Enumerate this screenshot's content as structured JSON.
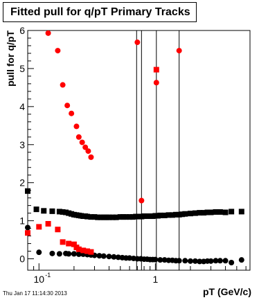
{
  "chart_data": {
    "type": "scatter",
    "title": "Fitted pull for q/pT  Primary Tracks",
    "xlabel": "pT (GeV/c)",
    "ylabel": "pull for q/pT",
    "x_scale": "log",
    "xlim": [
      0.08,
      6.5
    ],
    "ylim": [
      -0.3,
      6.0
    ],
    "x_tick_labels": [
      {
        "value": 0.1,
        "label": "10",
        "sup": "-1"
      },
      {
        "value": 1,
        "label": "1",
        "sup": ""
      }
    ],
    "y_tick_labels": [
      0,
      1,
      2,
      3,
      4,
      5,
      6
    ],
    "series": [
      {
        "marker": "square",
        "color": "#000000",
        "points": [
          [
            0.08,
            1.78
          ],
          [
            0.095,
            1.3
          ],
          [
            0.11,
            1.26
          ],
          [
            0.13,
            1.25
          ],
          [
            0.15,
            1.24
          ],
          [
            0.16,
            1.23
          ],
          [
            0.17,
            1.22
          ],
          [
            0.18,
            1.2
          ],
          [
            0.19,
            1.18
          ],
          [
            0.2,
            1.16
          ],
          [
            0.21,
            1.15
          ],
          [
            0.22,
            1.14
          ],
          [
            0.23,
            1.13
          ],
          [
            0.24,
            1.12
          ],
          [
            0.25,
            1.12
          ],
          [
            0.26,
            1.11
          ],
          [
            0.28,
            1.1
          ],
          [
            0.3,
            1.1
          ],
          [
            0.32,
            1.09
          ],
          [
            0.34,
            1.09
          ],
          [
            0.36,
            1.09
          ],
          [
            0.38,
            1.09
          ],
          [
            0.4,
            1.09
          ],
          [
            0.43,
            1.09
          ],
          [
            0.46,
            1.09
          ],
          [
            0.5,
            1.1
          ],
          [
            0.53,
            1.1
          ],
          [
            0.56,
            1.1
          ],
          [
            0.6,
            1.1
          ],
          [
            0.64,
            1.1
          ],
          [
            0.68,
            1.11
          ],
          [
            0.72,
            1.11
          ],
          [
            0.76,
            1.11
          ],
          [
            0.8,
            1.12
          ],
          [
            0.85,
            1.12
          ],
          [
            0.9,
            1.12
          ],
          [
            0.95,
            1.12
          ],
          [
            1.0,
            1.13
          ],
          [
            1.05,
            1.13
          ],
          [
            1.1,
            1.14
          ],
          [
            1.2,
            1.14
          ],
          [
            1.3,
            1.15
          ],
          [
            1.4,
            1.15
          ],
          [
            1.5,
            1.16
          ],
          [
            1.6,
            1.16
          ],
          [
            1.7,
            1.17
          ],
          [
            1.8,
            1.18
          ],
          [
            2.0,
            1.19
          ],
          [
            2.2,
            1.2
          ],
          [
            2.4,
            1.21
          ],
          [
            2.6,
            1.21
          ],
          [
            2.8,
            1.22
          ],
          [
            3.0,
            1.22
          ],
          [
            3.3,
            1.23
          ],
          [
            3.6,
            1.23
          ],
          [
            4.0,
            1.22
          ],
          [
            4.5,
            1.24
          ],
          [
            5.5,
            1.24
          ]
        ]
      },
      {
        "marker": "circle",
        "color": "#000000",
        "points": [
          [
            0.08,
            0.82
          ],
          [
            0.1,
            0.17
          ],
          [
            0.13,
            0.14
          ],
          [
            0.15,
            0.13
          ],
          [
            0.17,
            0.14
          ],
          [
            0.18,
            0.13
          ],
          [
            0.2,
            0.13
          ],
          [
            0.22,
            0.12
          ],
          [
            0.24,
            0.12
          ],
          [
            0.26,
            0.11
          ],
          [
            0.28,
            0.1
          ],
          [
            0.3,
            0.09
          ],
          [
            0.33,
            0.08
          ],
          [
            0.36,
            0.07
          ],
          [
            0.4,
            0.06
          ],
          [
            0.44,
            0.05
          ],
          [
            0.48,
            0.04
          ],
          [
            0.52,
            0.03
          ],
          [
            0.56,
            0.02
          ],
          [
            0.6,
            0.02
          ],
          [
            0.65,
            0.01
          ],
          [
            0.7,
            0.0
          ],
          [
            0.75,
            0.0
          ],
          [
            0.8,
            -0.01
          ],
          [
            0.85,
            -0.01
          ],
          [
            0.9,
            -0.02
          ],
          [
            0.95,
            -0.02
          ],
          [
            1.0,
            -0.02
          ],
          [
            1.1,
            -0.03
          ],
          [
            1.2,
            -0.03
          ],
          [
            1.3,
            -0.04
          ],
          [
            1.4,
            -0.04
          ],
          [
            1.5,
            -0.05
          ],
          [
            1.6,
            -0.05
          ],
          [
            1.8,
            -0.05
          ],
          [
            2.0,
            -0.06
          ],
          [
            2.2,
            -0.06
          ],
          [
            2.4,
            -0.07
          ],
          [
            2.6,
            -0.07
          ],
          [
            2.8,
            -0.06
          ],
          [
            3.0,
            -0.06
          ],
          [
            3.3,
            -0.05
          ],
          [
            3.6,
            -0.05
          ],
          [
            4.0,
            -0.05
          ],
          [
            4.5,
            -0.1
          ],
          [
            5.5,
            -0.03
          ]
        ]
      },
      {
        "marker": "square",
        "color": "#ff0000",
        "points": [
          [
            0.08,
            0.68
          ],
          [
            0.1,
            0.84
          ],
          [
            0.12,
            0.92
          ],
          [
            0.145,
            0.77
          ],
          [
            0.16,
            0.44
          ],
          [
            0.18,
            0.4
          ],
          [
            0.2,
            0.38
          ],
          [
            0.21,
            0.3
          ],
          [
            0.22,
            0.25
          ],
          [
            0.24,
            0.22
          ],
          [
            0.26,
            0.2
          ],
          [
            0.28,
            0.18
          ],
          [
            1.02,
            4.97
          ]
        ]
      },
      {
        "marker": "circle",
        "color": "#ff0000",
        "points": [
          [
            0.12,
            5.93
          ],
          [
            0.145,
            5.47
          ],
          [
            0.16,
            4.57
          ],
          [
            0.175,
            4.03
          ],
          [
            0.19,
            3.82
          ],
          [
            0.21,
            3.48
          ],
          [
            0.22,
            3.2
          ],
          [
            0.235,
            3.06
          ],
          [
            0.25,
            2.93
          ],
          [
            0.265,
            2.83
          ],
          [
            0.28,
            2.67
          ],
          [
            0.7,
            5.69
          ],
          [
            0.76,
            1.53
          ],
          [
            1.02,
            4.63
          ],
          [
            1.6,
            5.47
          ]
        ]
      }
    ],
    "vertical_lines": [
      0.69,
      0.76,
      1.02,
      1.6
    ]
  },
  "footer": {
    "timestamp": "Thu Jan 17 11:14:30 2013"
  }
}
